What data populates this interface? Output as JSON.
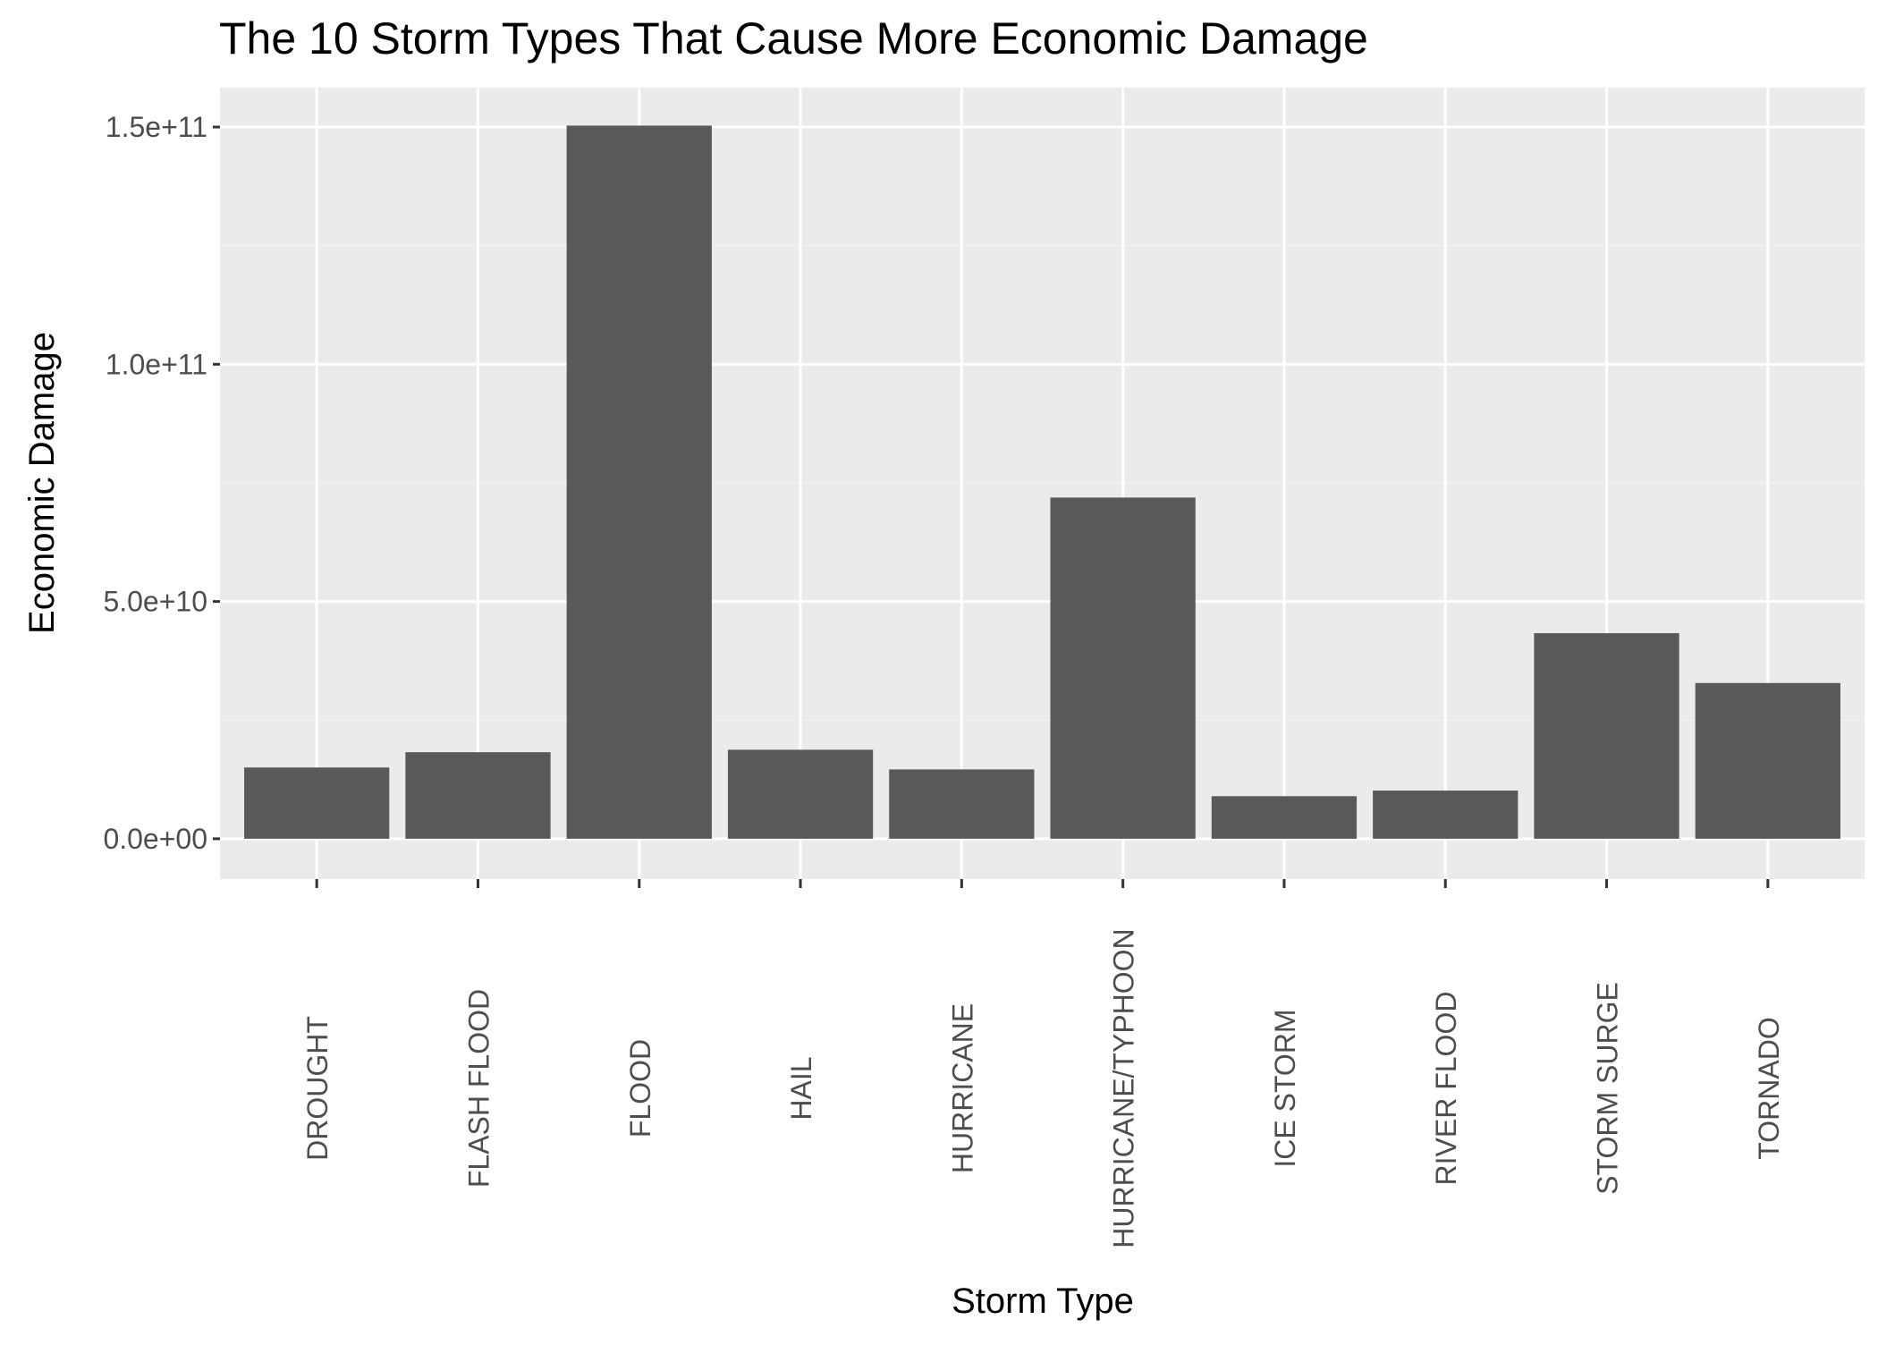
{
  "chart_data": {
    "type": "bar",
    "title": "The 10 Storm Types That Cause More Economic Damage",
    "xlabel": "Storm Type",
    "ylabel": "Economic Damage",
    "categories": [
      "DROUGHT",
      "FLASH FLOOD",
      "FLOOD",
      "HAIL",
      "HURRICANE",
      "HURRICANE/TYPHOON",
      "ICE STORM",
      "RIVER FLOOD",
      "STORM SURGE",
      "TORNADO"
    ],
    "values": [
      15020000000,
      18240000000,
      150300000000,
      18760000000,
      14610000000,
      71910000000,
      8970000000,
      10150000000,
      43320000000,
      32820000000
    ],
    "ylim": [
      -8500000000,
      158300000000
    ],
    "yticks": [
      0,
      50000000000,
      100000000000,
      150000000000
    ],
    "ytick_labels": [
      "0.0e+00",
      "5.0e+10",
      "1.0e+11",
      "1.5e+11"
    ],
    "grid": true,
    "colors": {
      "bar": "#595959",
      "panel": "#ebebeb",
      "grid_major": "#ffffff",
      "grid_minor": "#f2f2f2",
      "tick": "#333333",
      "tick_label": "#4d4d4d"
    }
  }
}
